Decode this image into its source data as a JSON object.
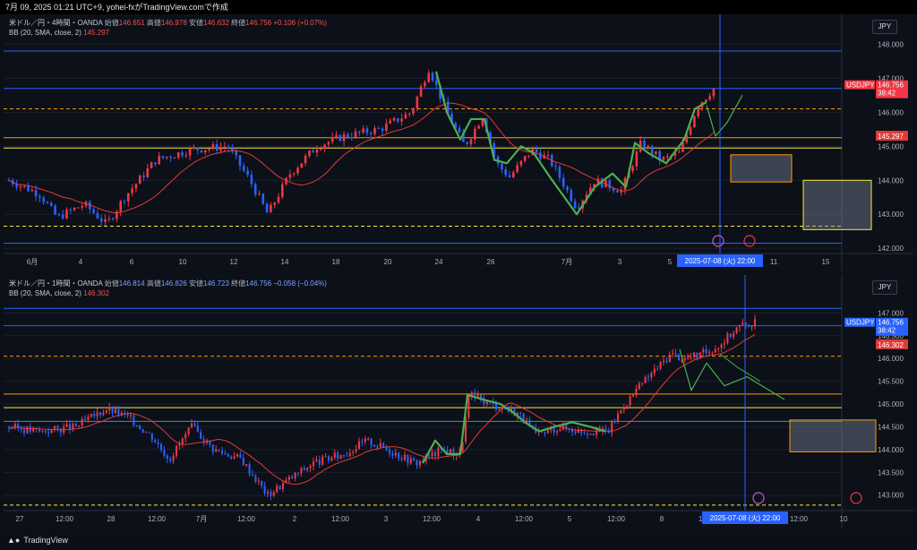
{
  "topbar": {
    "text": "7月 09, 2025 01:21 UTC+9,  yohei-fxがTradingView.comで作成"
  },
  "pane1": {
    "legend_line1": {
      "symbol": "米ドル／円・4時間・OANDA",
      "o_label": "始値",
      "o": "146.651",
      "h_label": "高値",
      "h": "146.978",
      "l_label": "安値",
      "l": "146.632",
      "c_label": "終値",
      "c": "146.756",
      "chg": "+0.106 (+0.07%)"
    },
    "legend_line2": {
      "label": "BB (20, SMA, close, 2)",
      "value": "145.297"
    },
    "currency": "JPY",
    "price_ticks": [
      "148.000",
      "147.000",
      "146.000",
      "145.000",
      "144.000",
      "143.000",
      "142.000"
    ],
    "price_ticks_vals": [
      148,
      147,
      146,
      145,
      144,
      143,
      142
    ],
    "y_range": [
      141.9,
      148.3
    ],
    "usdjpy_tag": {
      "label": "USDJPY",
      "price": "146.756",
      "time": "38:42"
    },
    "bb_tag": {
      "price": "145.297"
    },
    "time_ticks": [
      "6月",
      "4",
      "6",
      "10",
      "12",
      "14",
      "18",
      "20",
      "24",
      "26",
      "7月",
      "3",
      "5",
      "9",
      "11",
      "15"
    ],
    "cursor_time": "2025-07-08 (火)  22:00",
    "hlines": [
      {
        "price": 147.8,
        "color": "#2962ff",
        "style": "solid"
      },
      {
        "price": 146.7,
        "color": "#2962ff",
        "style": "solid"
      },
      {
        "price": 146.1,
        "color": "#ff9800",
        "style": "dashed"
      },
      {
        "price": 145.25,
        "color": "#ff9800",
        "style": "solid"
      },
      {
        "price": 144.95,
        "color": "#ffeb3b",
        "style": "solid"
      },
      {
        "price": 142.65,
        "color": "#ffeb3b",
        "style": "dashed"
      },
      {
        "price": 142.15,
        "color": "#2962ff",
        "style": "solid"
      }
    ]
  },
  "pane2": {
    "legend_line1": {
      "symbol": "米ドル／円・1時間・OANDA",
      "o_label": "始値",
      "o": "146.814",
      "h_label": "高値",
      "h": "146.826",
      "l_label": "安値",
      "l": "146.723",
      "c_label": "終値",
      "c": "146.756",
      "chg": "−0.058 (−0.04%)"
    },
    "legend_line2": {
      "label": "BB (20, SMA, close, 2)",
      "value": "146.302"
    },
    "currency": "JPY",
    "price_ticks": [
      "147.000",
      "146.500",
      "146.000",
      "145.500",
      "145.000",
      "144.500",
      "144.000",
      "143.500",
      "143.000"
    ],
    "price_ticks_vals": [
      147,
      146.5,
      146,
      145.5,
      145,
      144.5,
      144,
      143.5,
      143
    ],
    "y_range": [
      142.7,
      147.4
    ],
    "usdjpy_tag": {
      "label": "USDJPY",
      "price": "146.756",
      "time": "38:42"
    },
    "bb_tag": {
      "price": "146.302"
    },
    "time_ticks": [
      "27",
      "12:00",
      "28",
      "12:00",
      "7月",
      "12:00",
      "2",
      "12:00",
      "3",
      "12:00",
      "4",
      "12:00",
      "5",
      "12:00",
      "8",
      "12:00",
      "22:00",
      "12:00",
      "10"
    ],
    "cursor_time": "2025-07-08 (火)  22:00",
    "hlines": [
      {
        "price": 147.1,
        "color": "#2962ff",
        "style": "solid"
      },
      {
        "price": 146.72,
        "color": "#2962ff",
        "style": "solid"
      },
      {
        "price": 146.05,
        "color": "#ff9800",
        "style": "dashed"
      },
      {
        "price": 145.22,
        "color": "#ff9800",
        "style": "solid"
      },
      {
        "price": 144.92,
        "color": "#ffeb3b",
        "style": "solid"
      },
      {
        "price": 144.62,
        "color": "#26a69a",
        "style": "solid"
      },
      {
        "price": 142.78,
        "color": "#ffeb3b",
        "style": "dashed"
      }
    ]
  },
  "footer": {
    "brand": "TradingView"
  },
  "colors": {
    "up": "#f23645",
    "down": "#2962ff",
    "bb": "#e53935",
    "wave": "#4caf50"
  }
}
